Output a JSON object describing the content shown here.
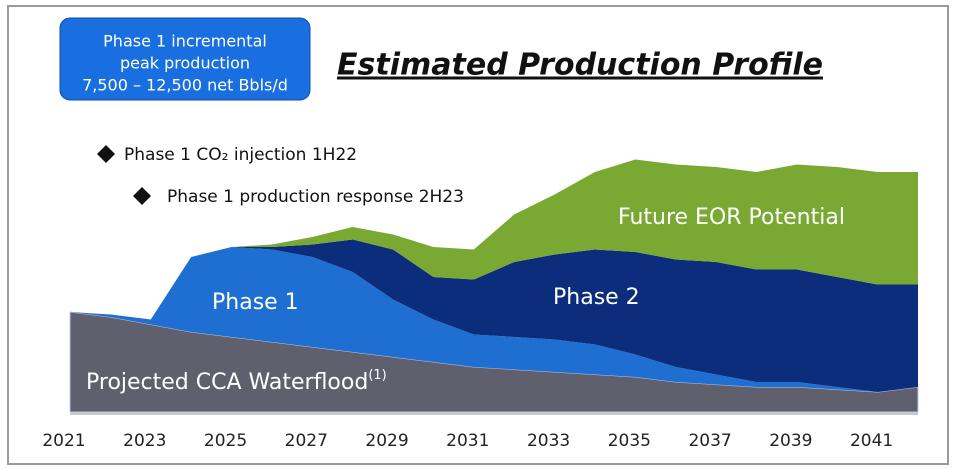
{
  "chart_data": {
    "type": "stacked_area",
    "title": "Estimated Production Profile",
    "callout": [
      "Phase 1 incremental",
      "peak production",
      "7,500 – 12,500 net Bbls/d"
    ],
    "annotations": [
      "Phase 1 CO₂ injection 1H22",
      "Phase 1 production response 2H23"
    ],
    "footnote_marker": "(1)",
    "x": [
      2021,
      2022,
      2023,
      2024,
      2025,
      2026,
      2027,
      2028,
      2029,
      2030,
      2031,
      2032,
      2033,
      2034,
      2035,
      2036,
      2037,
      2038,
      2039,
      2040,
      2041,
      2042
    ],
    "series": [
      {
        "name": "Projected CCA Waterflood",
        "color": "#5f5f6e",
        "values": [
          40,
          38,
          35,
          32,
          30,
          28,
          26,
          24,
          22,
          20,
          18,
          17,
          16,
          15,
          14,
          12,
          11,
          10,
          10,
          9,
          8,
          10
        ]
      },
      {
        "name": "Phase 1",
        "color": "#1f6fd2",
        "values": [
          0,
          1,
          2,
          30,
          36,
          37,
          36,
          32,
          23,
          17,
          13,
          13,
          13,
          12,
          9,
          6,
          4,
          2,
          2,
          1,
          0,
          0
        ]
      },
      {
        "name": "Phase 2",
        "color": "#0c2d7c",
        "values": [
          0,
          0,
          0,
          0,
          0,
          1,
          5,
          13,
          20,
          17,
          22,
          30,
          34,
          38,
          41,
          43,
          45,
          45,
          45,
          44,
          43,
          41
        ]
      },
      {
        "name": "Future EOR Potential",
        "color": "#79a833",
        "values": [
          0,
          0,
          0,
          0,
          0,
          1,
          3,
          5,
          6,
          12,
          12,
          19,
          24,
          31,
          37,
          38,
          38,
          39,
          42,
          44,
          45,
          45
        ]
      }
    ],
    "xlim": [
      2021,
      2042
    ],
    "xticks": [
      2021,
      2023,
      2025,
      2027,
      2029,
      2031,
      2033,
      2035,
      2037,
      2039,
      2041
    ],
    "ylim": [
      0,
      100
    ]
  }
}
